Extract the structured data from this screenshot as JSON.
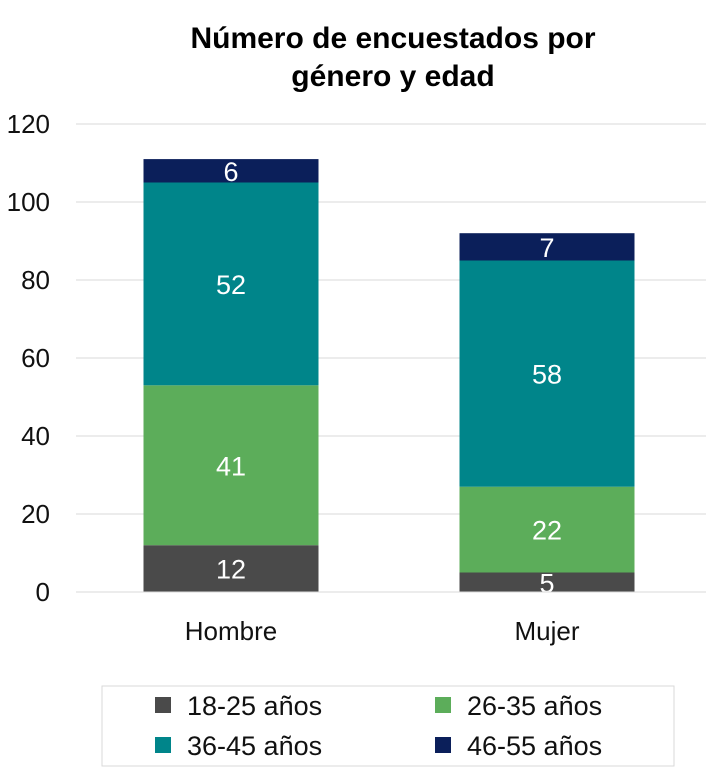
{
  "chart_data": {
    "type": "bar",
    "stacked": true,
    "title": "Número de encuestados por género y edad",
    "title_lines": [
      "Número de encuestados por",
      "género y edad"
    ],
    "xlabel": "",
    "ylabel": "",
    "categories": [
      "Hombre",
      "Mujer"
    ],
    "ylim": [
      0,
      120
    ],
    "yticks": [
      0,
      20,
      40,
      60,
      80,
      100,
      120
    ],
    "grid": true,
    "legend_position": "bottom",
    "series": [
      {
        "name": "18-25 años",
        "values": [
          12,
          5
        ],
        "color": "#4a4a4a"
      },
      {
        "name": "26-35 años",
        "values": [
          41,
          22
        ],
        "color": "#5cad5a"
      },
      {
        "name": "36-45 años",
        "values": [
          52,
          58
        ],
        "color": "#00858a"
      },
      {
        "name": "46-55 años",
        "values": [
          6,
          7
        ],
        "color": "#0b1f5a"
      }
    ]
  }
}
